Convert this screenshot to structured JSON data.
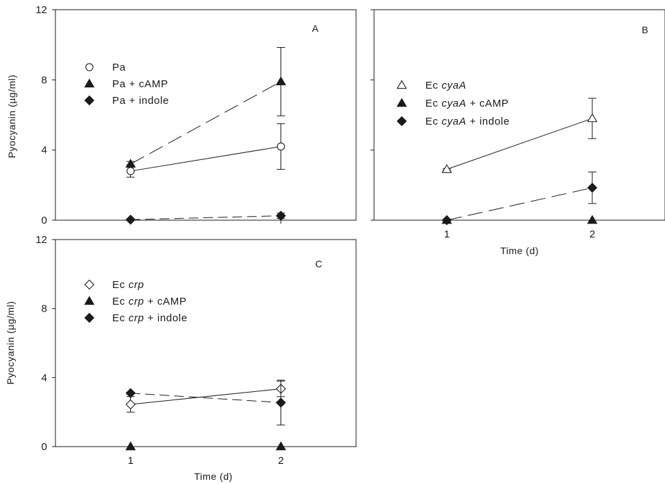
{
  "chart_data": [
    {
      "panel": "A",
      "type": "line",
      "ylabel": "Pyocyanin (µg/ml)",
      "xlabel": "",
      "ylim": [
        0,
        12
      ],
      "yticks": [
        "0",
        "4",
        "8",
        "12"
      ],
      "xlim": [
        0.5,
        2.5
      ],
      "xticks": [],
      "series": [
        {
          "name": "Pa",
          "marker": "circle-open",
          "line": "solid",
          "x": [
            1,
            2
          ],
          "y": [
            2.8,
            4.2
          ],
          "err": [
            0.35,
            1.3
          ]
        },
        {
          "name": "Pa + cAMP",
          "marker": "triangle-filled",
          "line": "longdash",
          "x": [
            1,
            2
          ],
          "y": [
            3.2,
            7.9
          ],
          "err": [
            0.15,
            1.95
          ]
        },
        {
          "name": "Pa + indole",
          "marker": "diamond-filled",
          "line": "shortdash",
          "x": [
            1,
            2
          ],
          "y": [
            0.03,
            0.25
          ],
          "err": [
            0.05,
            0.15
          ]
        }
      ]
    },
    {
      "panel": "B",
      "type": "line",
      "ylabel": "",
      "xlabel": "Time (d)",
      "ylim": [
        0,
        12
      ],
      "yticks": [],
      "xlim": [
        0.5,
        2.5
      ],
      "xticks": [
        "1",
        "2"
      ],
      "series": [
        {
          "name": "Ec cyaA",
          "prefix": "Ec ",
          "italic": "cyaA",
          "suffix": "",
          "marker": "triangle-open",
          "line": "solid",
          "x": [
            1,
            2
          ],
          "y": [
            2.9,
            5.8
          ],
          "err": [
            0.05,
            1.15
          ]
        },
        {
          "name": "Ec cyaA + cAMP",
          "prefix": "Ec ",
          "italic": "cyaA",
          "suffix": " + cAMP",
          "marker": "triangle-filled",
          "line": "solid",
          "x": [
            1,
            2
          ],
          "y": [
            0,
            0
          ],
          "err": [
            0,
            0
          ]
        },
        {
          "name": "Ec cyaA + indole",
          "prefix": "Ec ",
          "italic": "cyaA",
          "suffix": " + indole",
          "marker": "diamond-filled",
          "line": "longdash",
          "x": [
            1,
            2
          ],
          "y": [
            0,
            1.85
          ],
          "err": [
            0,
            0.9
          ]
        }
      ]
    },
    {
      "panel": "C",
      "type": "line",
      "ylabel": "Pyocyanin (µg/ml)",
      "xlabel": "Time (d)",
      "ylim": [
        0,
        12
      ],
      "yticks": [
        "0",
        "4",
        "8",
        "12"
      ],
      "xlim": [
        0.5,
        2.5
      ],
      "xticks": [
        "1",
        "2"
      ],
      "series": [
        {
          "name": "Ec crp",
          "prefix": "Ec ",
          "italic": "crp",
          "suffix": "",
          "marker": "diamond-open",
          "line": "solid",
          "x": [
            1,
            2
          ],
          "y": [
            2.45,
            3.35
          ],
          "err": [
            0.45,
            0.45
          ]
        },
        {
          "name": "Ec crp + cAMP",
          "prefix": "Ec ",
          "italic": "crp",
          "suffix": " + cAMP",
          "marker": "triangle-filled",
          "line": "solid",
          "x": [
            1,
            2
          ],
          "y": [
            0,
            0
          ],
          "err": [
            0,
            0
          ]
        },
        {
          "name": "Ec crp + indole",
          "prefix": "Ec ",
          "italic": "crp",
          "suffix": " + indole",
          "marker": "diamond-filled",
          "line": "shortdash",
          "x": [
            1,
            2
          ],
          "y": [
            3.1,
            2.55
          ],
          "err": [
            0.05,
            1.3
          ]
        }
      ]
    }
  ]
}
